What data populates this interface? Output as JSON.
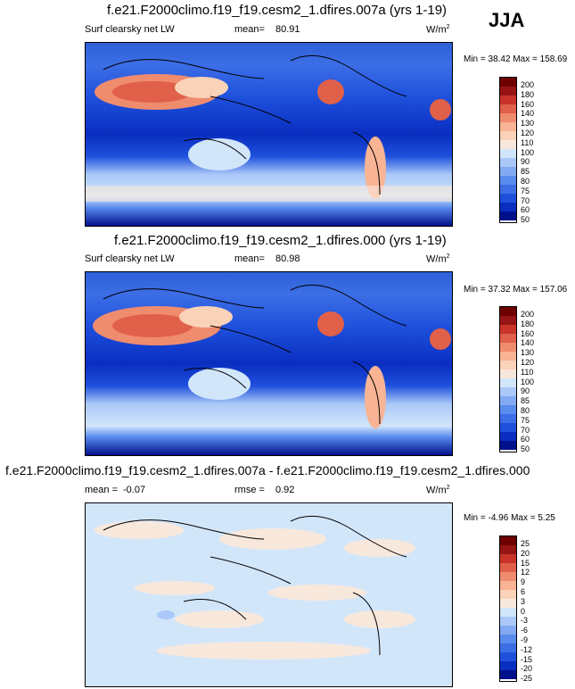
{
  "season": "JJA",
  "units_label": "W/m",
  "units_sup": "2",
  "panels": [
    {
      "title": "f.e21.F2000climo.f19_f19.cesm2_1.dfires.007a (yrs 1-19)",
      "var": "Surf clearsky net LW",
      "mean_label": "mean=",
      "mean": "80.91",
      "minmax": "Min =  38.42 Max = 158.69"
    },
    {
      "title": "f.e21.F2000climo.f19_f19.cesm2_1.dfires.000 (yrs 1-19)",
      "var": "Surf clearsky net LW",
      "mean_label": "mean=",
      "mean": "80.98",
      "minmax": "Min =  37.32 Max = 157.06"
    },
    {
      "title": "f.e21.F2000climo.f19_f19.cesm2_1.dfires.007a - f.e21.F2000climo.f19_f19.cesm2_1.dfires.000",
      "mean_label": "mean =",
      "mean": "-0.07",
      "rmse_label": "rmse =",
      "rmse": "0.92",
      "minmax": "Min =  -4.96 Max =   5.25"
    }
  ],
  "chart_data": [
    {
      "type": "heatmap",
      "title": "f.e21.F2000climo.f19_f19.cesm2_1.dfires.007a (yrs 1-19)",
      "variable": "Surf clearsky net LW",
      "units": "W/m2",
      "mean": 80.91,
      "min": 38.42,
      "max": 158.69,
      "colorbar_levels": [
        50,
        60,
        70,
        75,
        80,
        85,
        90,
        100,
        110,
        120,
        130,
        140,
        160,
        180,
        200
      ],
      "colors": [
        "#00108c",
        "#0a2ec0",
        "#1e50dc",
        "#3c6ee6",
        "#5a8cee",
        "#82aaf2",
        "#aac8f8",
        "#d2e6fa",
        "#f8e8dc",
        "#fad2b8",
        "#f8b494",
        "#f08c6e",
        "#e0604a",
        "#c8342a",
        "#961414",
        "#6e0000"
      ]
    },
    {
      "type": "heatmap",
      "title": "f.e21.F2000climo.f19_f19.cesm2_1.dfires.000 (yrs 1-19)",
      "variable": "Surf clearsky net LW",
      "units": "W/m2",
      "mean": 80.98,
      "min": 37.32,
      "max": 157.06,
      "colorbar_levels": [
        50,
        60,
        70,
        75,
        80,
        85,
        90,
        100,
        110,
        120,
        130,
        140,
        160,
        180,
        200
      ],
      "colors": [
        "#00108c",
        "#0a2ec0",
        "#1e50dc",
        "#3c6ee6",
        "#5a8cee",
        "#82aaf2",
        "#aac8f8",
        "#d2e6fa",
        "#f8e8dc",
        "#fad2b8",
        "#f8b494",
        "#f08c6e",
        "#e0604a",
        "#c8342a",
        "#961414",
        "#6e0000"
      ]
    },
    {
      "type": "heatmap",
      "title": "f.e21.F2000climo.f19_f19.cesm2_1.dfires.007a - f.e21.F2000climo.f19_f19.cesm2_1.dfires.000",
      "units": "W/m2",
      "mean": -0.07,
      "rmse": 0.92,
      "min": -4.96,
      "max": 5.25,
      "colorbar_levels": [
        -25,
        -20,
        -15,
        -12,
        -9,
        -6,
        -3,
        0,
        3,
        6,
        9,
        12,
        15,
        20,
        25
      ],
      "colors": [
        "#00108c",
        "#0a2ec0",
        "#1e50dc",
        "#3c6ee6",
        "#5a8cee",
        "#82aaf2",
        "#aac8f8",
        "#d2e6fa",
        "#f8e8dc",
        "#fad2b8",
        "#f8b494",
        "#f08c6e",
        "#e0604a",
        "#c8342a",
        "#961414",
        "#6e0000"
      ]
    }
  ]
}
